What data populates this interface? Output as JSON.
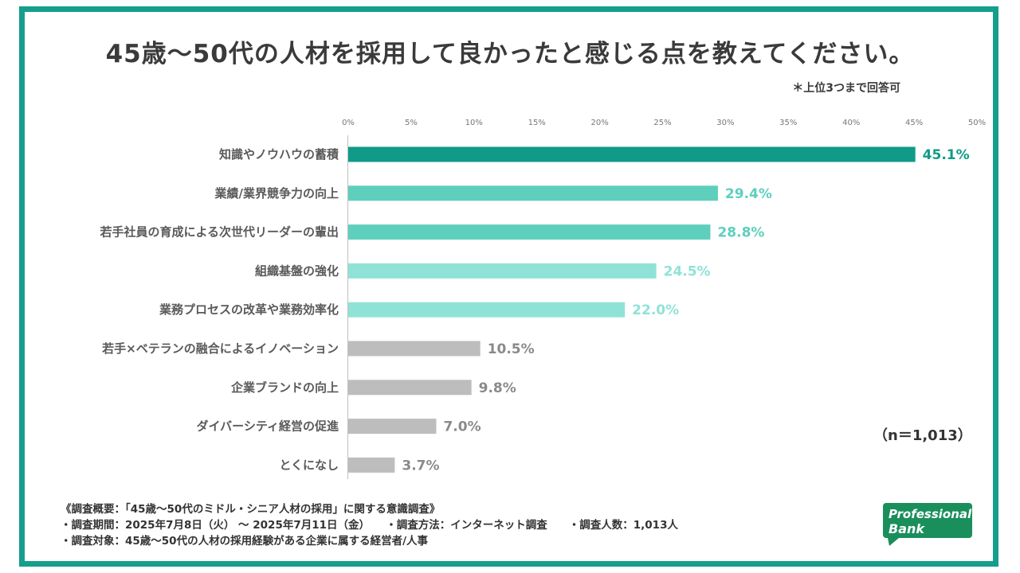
{
  "title": "45歳〜50代の人材を採用して良かったと感じる点を教えてください。",
  "note": "＊上位3つまで回答可",
  "sample_size": "（n＝1,013）",
  "footer": {
    "line1": "《調査概要：「45歳〜50代のミドル・シニア人材の採用」に関する意識調査》",
    "line2": "・調査期間：2025年7月8日（火） 〜 2025年7月11日（金）　　・調査方法：インターネット調査　　・調査人数：1,013人",
    "line3": "・調査対象：45歳〜50代の人材の採用経験がある企業に属する経営者/人事"
  },
  "logo": {
    "line1": "Professional",
    "line2": "Bank"
  },
  "colors": {
    "frame": "#169e8c",
    "rank1": "#0f9b87",
    "rank2": "#5fcfbd",
    "rank3": "#8fe3d6",
    "other": "#bdbdbd",
    "other_label": "#8a8a8a"
  },
  "chart_data": {
    "type": "bar",
    "orientation": "horizontal",
    "categories": [
      "知識やノウハウの蓄積",
      "業績/業界競争力の向上",
      "若手社員の育成による次世代リーダーの輩出",
      "組織基盤の強化",
      "業務プロセスの改革や業務効率化",
      "若手×ベテランの融合によるイノベーション",
      "企業ブランドの向上",
      "ダイバーシティ経営の促進",
      "とくになし"
    ],
    "values": [
      45.1,
      29.4,
      28.8,
      24.5,
      22.0,
      10.5,
      9.8,
      7.0,
      3.7
    ],
    "value_labels": [
      "45.1%",
      "29.4%",
      "28.8%",
      "24.5%",
      "22.0%",
      "10.5%",
      "9.8%",
      "7.0%",
      "3.7%"
    ],
    "tiers": [
      "rank1",
      "rank2",
      "rank2",
      "rank3",
      "rank3",
      "other",
      "other",
      "other",
      "other"
    ],
    "xlim": [
      0,
      50
    ],
    "ticks": [
      "0%",
      "5%",
      "10%",
      "15%",
      "20%",
      "25%",
      "30%",
      "35%",
      "40%",
      "45%",
      "50%"
    ],
    "tick_values": [
      0,
      5,
      10,
      15,
      20,
      25,
      30,
      35,
      40,
      45,
      50
    ],
    "grid": false,
    "legend": "none"
  }
}
